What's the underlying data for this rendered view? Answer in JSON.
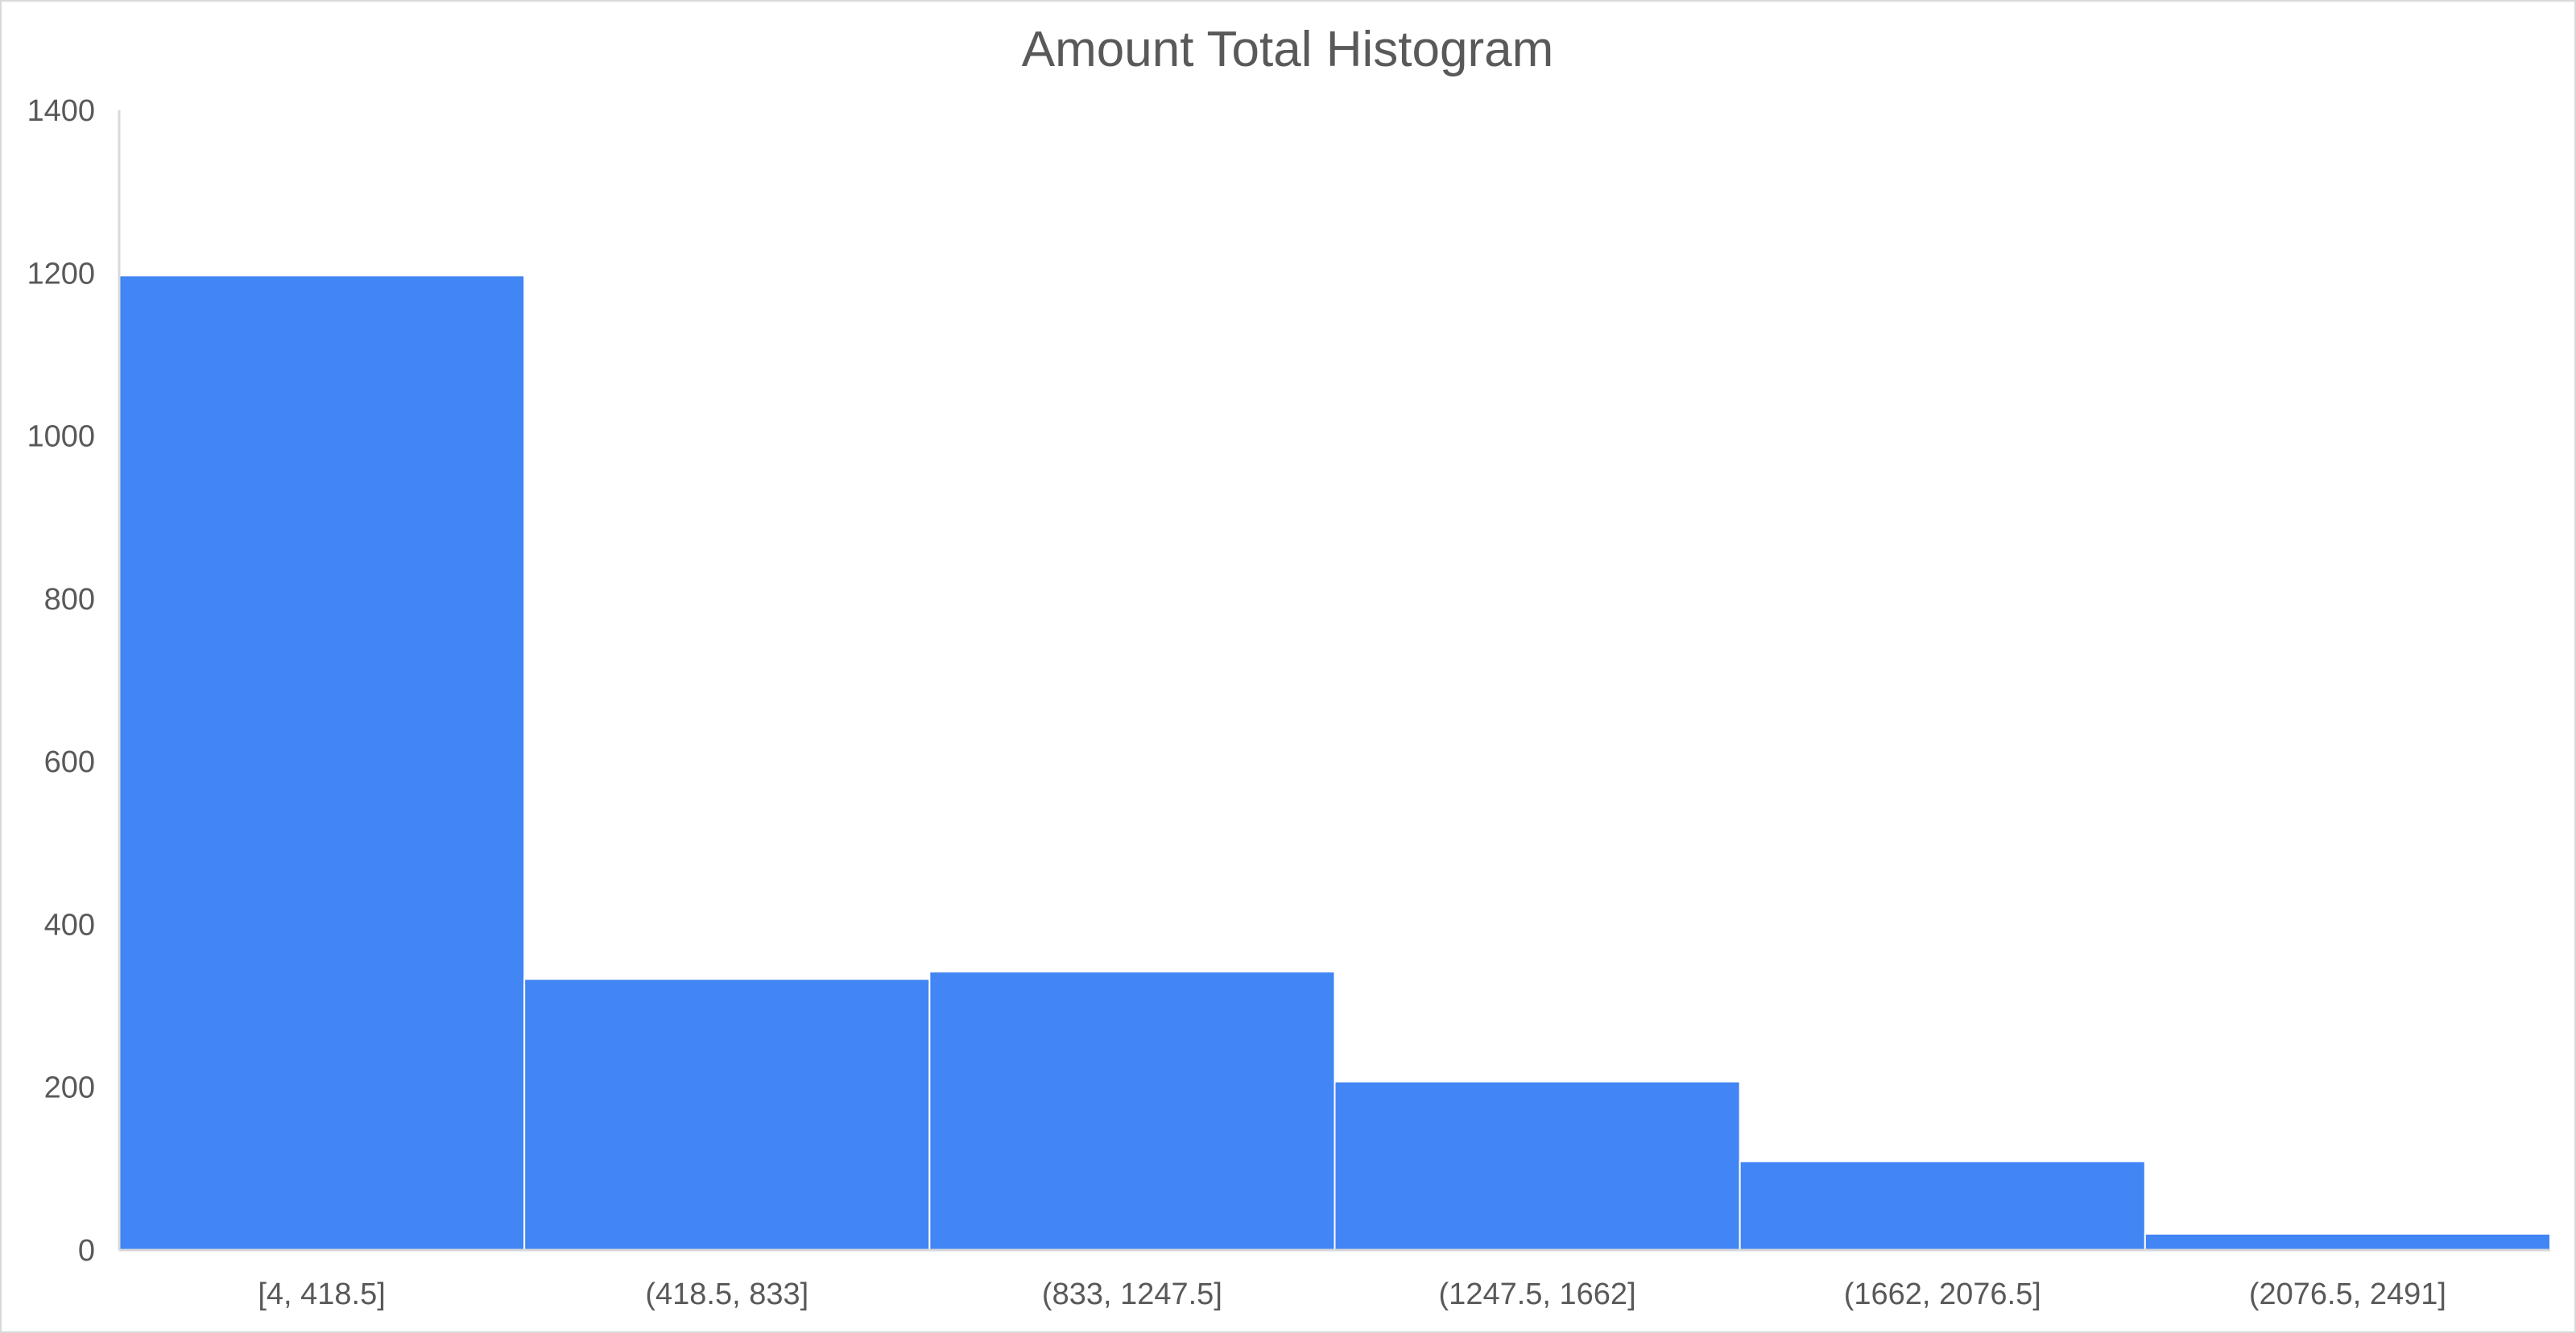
{
  "chart_data": {
    "type": "bar",
    "title": "Amount Total Histogram",
    "xlabel": "",
    "ylabel": "",
    "categories": [
      "[4, 418.5]",
      "(418.5, 833]",
      "(833, 1247.5]",
      "(1247.5, 1662]",
      "(1662, 2076.5]",
      "(2076.5, 2491]"
    ],
    "values": [
      1197,
      333,
      342,
      207,
      109,
      20
    ],
    "ylim": [
      0,
      1400
    ],
    "yticks": [
      "0",
      "200",
      "400",
      "600",
      "800",
      "1000",
      "1200",
      "1400"
    ],
    "grid": false,
    "legend": "none",
    "bar_color": "#4285f4"
  }
}
